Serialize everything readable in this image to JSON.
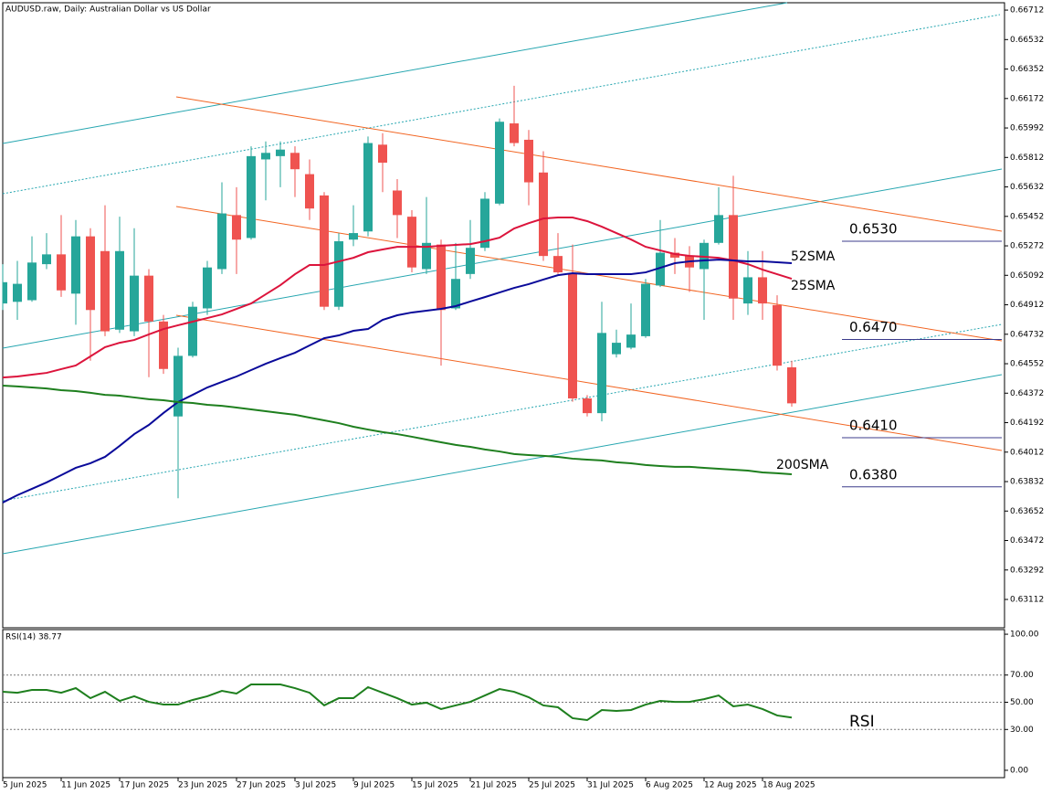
{
  "chart_data": [
    {
      "type": "candlestick",
      "title": "AUDUSD.raw, Daily:  Australian Dollar vs US Dollar",
      "categories": [
        "5 Jun 2025",
        null,
        null,
        null,
        "11 Jun 2025",
        null,
        null,
        null,
        "17 Jun 2025",
        null,
        null,
        null,
        "23 Jun 2025",
        null,
        null,
        null,
        "27 Jun 2025",
        null,
        null,
        null,
        "3 Jul 2025",
        null,
        null,
        null,
        "9 Jul 2025",
        null,
        null,
        null,
        "15 Jul 2025",
        null,
        null,
        null,
        "21 Jul 2025",
        null,
        null,
        null,
        "25 Jul 2025",
        null,
        null,
        null,
        "31 Jul 2025",
        null,
        null,
        null,
        "6 Aug 2025",
        null,
        null,
        null,
        "12 Aug 2025",
        null,
        null,
        null,
        "18 Aug 2025",
        null,
        null
      ],
      "open": [
        0.6492,
        0.6493,
        0.6494,
        0.6516,
        0.6522,
        0.6498,
        0.6533,
        0.6524,
        0.6476,
        0.6475,
        0.6509,
        0.6481,
        0.6423,
        0.646,
        0.6489,
        0.6513,
        0.6546,
        0.6532,
        0.658,
        0.6582,
        0.6584,
        0.6571,
        0.6558,
        0.649,
        0.6531,
        0.6536,
        0.6589,
        0.6561,
        0.6545,
        0.6513,
        0.6528,
        0.6489,
        0.651,
        0.6526,
        0.6553,
        0.6602,
        0.6592,
        0.6572,
        0.6521,
        0.651,
        0.6434,
        0.6425,
        0.6461,
        0.6465,
        0.6472,
        0.6503,
        0.6523,
        0.6521,
        0.6513,
        0.6529,
        0.6546,
        0.6492,
        0.6508,
        0.6491,
        0.6453
      ],
      "high": [
        0.6516,
        0.6518,
        0.6533,
        0.6535,
        0.6546,
        0.6543,
        0.6538,
        0.6552,
        0.6545,
        0.6538,
        0.6513,
        0.6485,
        0.6465,
        0.6493,
        0.6518,
        0.6566,
        0.6563,
        0.6588,
        0.6591,
        0.6591,
        0.6588,
        0.658,
        0.656,
        0.6535,
        0.6552,
        0.6594,
        0.6596,
        0.6568,
        0.6549,
        0.6557,
        0.6531,
        0.6529,
        0.6543,
        0.656,
        0.6605,
        0.6625,
        0.6598,
        0.6585,
        0.6535,
        0.6528,
        0.6436,
        0.6493,
        0.6476,
        0.6492,
        0.6507,
        0.6543,
        0.6532,
        0.6527,
        0.6531,
        0.6563,
        0.657,
        0.6524,
        0.6524,
        0.6497,
        0.6457
      ],
      "low": [
        0.6488,
        0.6482,
        0.6493,
        0.6513,
        0.6496,
        0.6479,
        0.6457,
        0.6472,
        0.6474,
        0.6472,
        0.6447,
        0.6449,
        0.6373,
        0.6459,
        0.6485,
        0.651,
        0.651,
        0.6531,
        0.6555,
        0.6563,
        0.6557,
        0.6543,
        0.6488,
        0.6488,
        0.6527,
        0.6533,
        0.656,
        0.6532,
        0.6511,
        0.651,
        0.6454,
        0.6488,
        0.6507,
        0.6524,
        0.6552,
        0.6588,
        0.6552,
        0.6518,
        0.651,
        0.6432,
        0.6423,
        0.642,
        0.6459,
        0.6464,
        0.6471,
        0.6502,
        0.651,
        0.6499,
        0.6482,
        0.6528,
        0.6482,
        0.6485,
        0.6482,
        0.6451,
        0.6429
      ],
      "close": [
        0.6505,
        0.6504,
        0.6517,
        0.6522,
        0.65,
        0.6533,
        0.6488,
        0.6475,
        0.6524,
        0.6509,
        0.6481,
        0.6452,
        0.646,
        0.649,
        0.6514,
        0.6547,
        0.6531,
        0.6582,
        0.6584,
        0.6586,
        0.6574,
        0.655,
        0.649,
        0.653,
        0.6535,
        0.659,
        0.6578,
        0.6546,
        0.6514,
        0.6529,
        0.6488,
        0.6507,
        0.6526,
        0.6556,
        0.6603,
        0.659,
        0.6566,
        0.6521,
        0.6511,
        0.6434,
        0.6425,
        0.6474,
        0.6468,
        0.6473,
        0.6504,
        0.6523,
        0.652,
        0.6514,
        0.6529,
        0.6546,
        0.6495,
        0.6508,
        0.6492,
        0.6454,
        0.6431
      ],
      "up_color": "#26a69a",
      "down_color": "#ef5350",
      "ylim": [
        0.62939,
        0.66757
      ],
      "yticks": [
        0.66712,
        0.66532,
        0.66352,
        0.66172,
        0.65992,
        0.65812,
        0.65632,
        0.65452,
        0.65272,
        0.65092,
        0.64912,
        0.64732,
        0.64552,
        0.64372,
        0.64192,
        0.64012,
        0.63832,
        0.63652,
        0.63472,
        0.63292,
        0.63112
      ],
      "series": [
        {
          "name": "25SMA",
          "color": "#dc143c",
          "values": [
            0.64468,
            0.64474,
            0.64485,
            0.64496,
            0.64519,
            0.64541,
            0.64597,
            0.64653,
            0.6468,
            0.64697,
            0.64731,
            0.64764,
            0.64787,
            0.64809,
            0.64831,
            0.64853,
            0.64887,
            0.6492,
            0.64976,
            0.65032,
            0.65099,
            0.65155,
            0.65155,
            0.65177,
            0.65199,
            0.65233,
            0.6525,
            0.65266,
            0.65266,
            0.65266,
            0.65272,
            0.65278,
            0.65283,
            0.653,
            0.65322,
            0.65378,
            0.65411,
            0.65439,
            0.65445,
            0.65445,
            0.65423,
            0.65389,
            0.6535,
            0.65311,
            0.65266,
            0.65244,
            0.65222,
            0.65211,
            0.65205,
            0.65199,
            0.65183,
            0.6516,
            0.65127,
            0.65099,
            0.65071
          ]
        },
        {
          "name": "52SMA",
          "color": "#0a0a9a",
          "values": [
            0.63704,
            0.63749,
            0.63788,
            0.63827,
            0.63871,
            0.63916,
            0.63944,
            0.63983,
            0.6405,
            0.64122,
            0.64178,
            0.64251,
            0.64318,
            0.64362,
            0.64407,
            0.64441,
            0.64474,
            0.64513,
            0.64552,
            0.64586,
            0.64619,
            0.64664,
            0.64708,
            0.64725,
            0.64753,
            0.64764,
            0.6482,
            0.64848,
            0.64865,
            0.64876,
            0.64887,
            0.64904,
            0.64932,
            0.64959,
            0.64987,
            0.65015,
            0.65038,
            0.65066,
            0.65093,
            0.65105,
            0.65099,
            0.65099,
            0.65099,
            0.65099,
            0.6511,
            0.65138,
            0.65166,
            0.65177,
            0.65183,
            0.65188,
            0.65183,
            0.65177,
            0.65177,
            0.65172,
            0.65166
          ]
        },
        {
          "name": "200SMA",
          "color": "#1e7f1e",
          "values": [
            0.64418,
            0.64413,
            0.64407,
            0.64401,
            0.6439,
            0.64385,
            0.64374,
            0.64362,
            0.64357,
            0.64346,
            0.64335,
            0.64329,
            0.64318,
            0.64312,
            0.64301,
            0.64295,
            0.64284,
            0.64273,
            0.64262,
            0.64251,
            0.6424,
            0.64223,
            0.64206,
            0.64189,
            0.64167,
            0.6415,
            0.64134,
            0.64122,
            0.64106,
            0.64089,
            0.64072,
            0.64056,
            0.64044,
            0.64028,
            0.64016,
            0.64,
            0.63994,
            0.63989,
            0.63983,
            0.63972,
            0.63966,
            0.63961,
            0.6395,
            0.63944,
            0.63933,
            0.63927,
            0.63922,
            0.63922,
            0.63916,
            0.6391,
            0.63905,
            0.63899,
            0.63888,
            0.63883,
            0.63877
          ]
        }
      ],
      "levels": [
        {
          "value": 0.653,
          "label": "0.6530"
        },
        {
          "value": 0.647,
          "label": "0.6470"
        },
        {
          "value": 0.641,
          "label": "0.6410"
        },
        {
          "value": 0.638,
          "label": "0.6380"
        }
      ],
      "level_color": "#3c3c8c"
    },
    {
      "type": "line",
      "title": "RSI(14) 38.77",
      "series": [
        {
          "name": "RSI",
          "color": "#1e7f1e",
          "values": [
            57.7,
            57.0,
            59.1,
            59.1,
            57.0,
            60.4,
            53.0,
            57.7,
            51.0,
            54.4,
            50.3,
            48.3,
            48.3,
            51.7,
            54.4,
            58.4,
            56.4,
            63.1,
            63.1,
            63.1,
            60.4,
            57.0,
            47.7,
            53.0,
            53.0,
            61.1,
            57.0,
            53.0,
            48.3,
            49.7,
            45.0,
            47.7,
            50.3,
            55.0,
            59.7,
            57.7,
            53.7,
            47.7,
            46.3,
            38.3,
            36.9,
            44.3,
            43.6,
            44.3,
            48.3,
            51.0,
            50.3,
            50.3,
            52.3,
            55.0,
            47.0,
            48.3,
            45.0,
            40.3,
            38.77
          ]
        }
      ],
      "ylim": [
        -5.4,
        103.4
      ],
      "yticks": [
        {
          "value": 100,
          "label": "100.00"
        },
        {
          "value": 70,
          "label": "70.00"
        },
        {
          "value": 50,
          "label": "50.00"
        },
        {
          "value": 30,
          "label": "30.00"
        },
        {
          "value": 0,
          "label": "0.00"
        }
      ],
      "levels": [
        70,
        50,
        30
      ]
    }
  ]
}
